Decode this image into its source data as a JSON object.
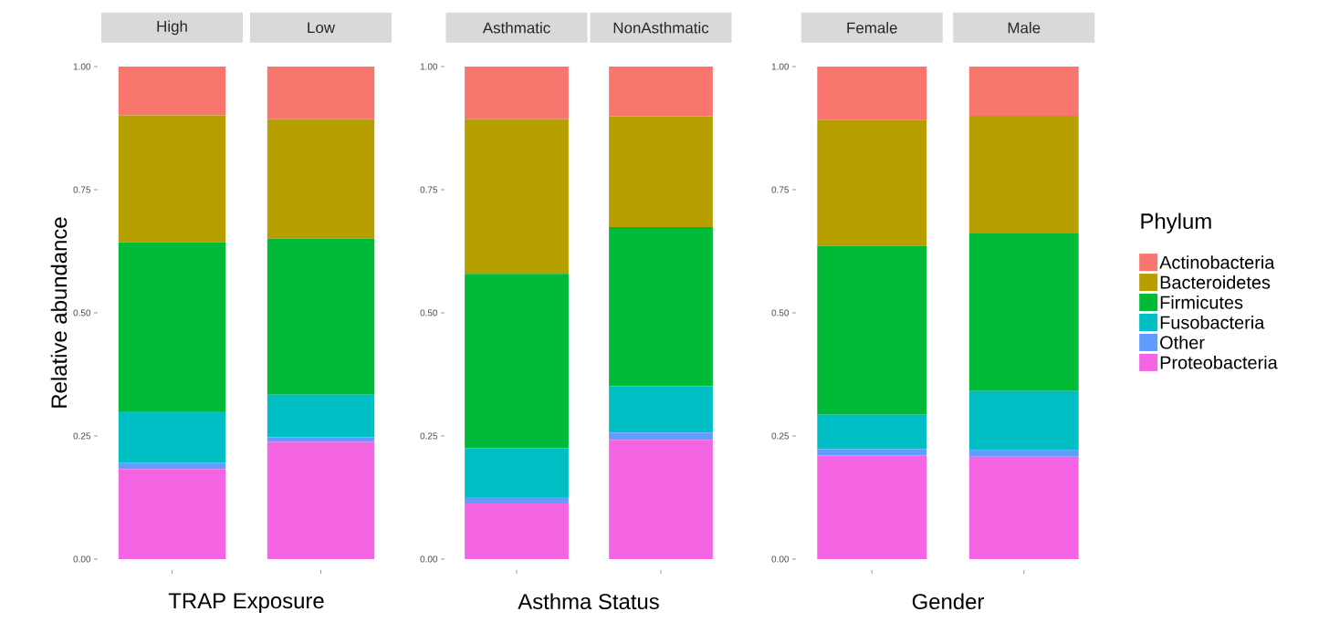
{
  "chart_data": [
    {
      "type": "bar",
      "stacked": true,
      "xlabel": "TRAP Exposure",
      "ylabel": "Relative abundance",
      "categories": [
        "High",
        "Low"
      ],
      "ylim": [
        0,
        1
      ],
      "yticks": [
        {
          "value": 0,
          "label": "0.00"
        },
        {
          "value": 0.25,
          "label": "0.25"
        },
        {
          "value": 0.5,
          "label": "0.50"
        },
        {
          "value": 0.75,
          "label": "0.75"
        },
        {
          "value": 1,
          "label": "1.00"
        }
      ],
      "series": [
        {
          "color": "#f564e3",
          "values": [
            0.183,
            0.238
          ]
        },
        {
          "color": "#619cff",
          "values": [
            0.013,
            0.009
          ]
        },
        {
          "color": "#00bfc4",
          "values": [
            0.104,
            0.087
          ]
        },
        {
          "color": "#00ba38",
          "values": [
            0.343,
            0.317
          ]
        },
        {
          "color": "#b79f00",
          "values": [
            0.258,
            0.242
          ]
        },
        {
          "color": "#f8766d",
          "values": [
            0.099,
            0.107
          ]
        }
      ]
    },
    {
      "type": "bar",
      "stacked": true,
      "xlabel": "Asthma Status",
      "categories": [
        "Asthmatic",
        "NonAsthmatic"
      ],
      "ylim": [
        0,
        1
      ],
      "yticks": [
        {
          "value": 0,
          "label": "0.00"
        },
        {
          "value": 0.25,
          "label": "0.25"
        },
        {
          "value": 0.5,
          "label": "0.50"
        },
        {
          "value": 0.75,
          "label": "0.75"
        },
        {
          "value": 1,
          "label": "1.00"
        }
      ],
      "series": [
        {
          "color": "#f564e3",
          "values": [
            0.113,
            0.242
          ]
        },
        {
          "color": "#619cff",
          "values": [
            0.013,
            0.015
          ]
        },
        {
          "color": "#00bfc4",
          "values": [
            0.099,
            0.094
          ]
        },
        {
          "color": "#00ba38",
          "values": [
            0.354,
            0.323
          ]
        },
        {
          "color": "#b79f00",
          "values": [
            0.314,
            0.225
          ]
        },
        {
          "color": "#f8766d",
          "values": [
            0.107,
            0.101
          ]
        }
      ]
    },
    {
      "type": "bar",
      "stacked": true,
      "xlabel": "Gender",
      "categories": [
        "Female",
        "Male"
      ],
      "legend": "right",
      "legend_title": "Phylum",
      "ylim": [
        0,
        1
      ],
      "yticks": [
        {
          "value": 0,
          "label": "0.00"
        },
        {
          "value": 0.25,
          "label": "0.25"
        },
        {
          "value": 0.5,
          "label": "0.50"
        },
        {
          "value": 0.75,
          "label": "0.75"
        },
        {
          "value": 1,
          "label": "1.00"
        }
      ],
      "series": [
        {
          "name": "Proteobacteria",
          "color": "#f564e3",
          "values": [
            0.21,
            0.208
          ]
        },
        {
          "name": "Other",
          "color": "#619cff",
          "values": [
            0.013,
            0.013
          ]
        },
        {
          "name": "Fusobacteria",
          "color": "#00bfc4",
          "values": [
            0.07,
            0.12
          ]
        },
        {
          "name": "Firmicutes",
          "color": "#00ba38",
          "values": [
            0.343,
            0.32
          ]
        },
        {
          "name": "Bacteroidetes",
          "color": "#b79f00",
          "values": [
            0.255,
            0.239
          ]
        },
        {
          "name": "Actinobacteria",
          "color": "#f8766d",
          "values": [
            0.109,
            0.1
          ]
        }
      ]
    }
  ]
}
